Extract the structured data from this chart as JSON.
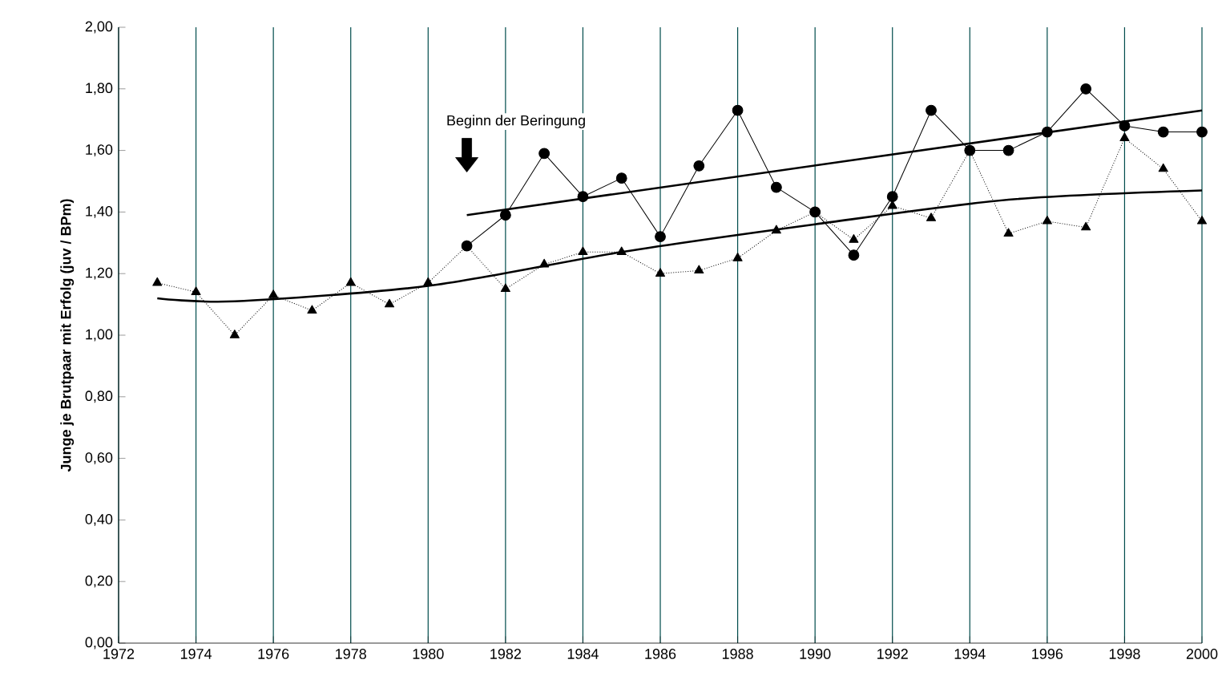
{
  "chart_data": {
    "type": "line",
    "ylabel": "Junge je Brutpaar mit Erfolg (juv / BPm)",
    "xlim": [
      1972,
      2000
    ],
    "xticks": [
      1972,
      1974,
      1976,
      1978,
      1980,
      1982,
      1984,
      1986,
      1988,
      1990,
      1992,
      1994,
      1996,
      1998,
      2000
    ],
    "ylim": [
      0,
      2
    ],
    "yticks": [
      {
        "value": 0,
        "label": "0,00"
      },
      {
        "value": 0.2,
        "label": "0,20"
      },
      {
        "value": 0.4,
        "label": "0,40"
      },
      {
        "value": 0.6,
        "label": "0,60"
      },
      {
        "value": 0.8,
        "label": "0,80"
      },
      {
        "value": 1.0,
        "label": "1,00"
      },
      {
        "value": 1.2,
        "label": "1,20"
      },
      {
        "value": 1.4,
        "label": "1,40"
      },
      {
        "value": 1.6,
        "label": "1,60"
      },
      {
        "value": 1.8,
        "label": "1,80"
      },
      {
        "value": 2.0,
        "label": "2,00"
      }
    ],
    "grid": "x",
    "annotations": [
      "Beginn der Beringung"
    ],
    "series": [
      {
        "color": "#000000",
        "marker": "circle",
        "line_style": "solid",
        "x": [
          1981,
          1982,
          1983,
          1984,
          1985,
          1986,
          1987,
          1988,
          1989,
          1990,
          1991,
          1992,
          1993,
          1994,
          1995,
          1996,
          1997,
          1998,
          1999,
          2000
        ],
        "values": [
          1.29,
          1.39,
          1.59,
          1.45,
          1.51,
          1.32,
          1.55,
          1.73,
          1.48,
          1.4,
          1.26,
          1.45,
          1.73,
          1.6,
          1.6,
          1.66,
          1.8,
          1.68,
          1.66,
          1.66
        ]
      },
      {
        "color": "#000000",
        "marker": "triangle",
        "line_style": "dotted",
        "x": [
          1973,
          1974,
          1975,
          1976,
          1977,
          1978,
          1979,
          1980,
          1981,
          1982,
          1983,
          1984,
          1985,
          1986,
          1987,
          1988,
          1989,
          1990,
          1991,
          1992,
          1993,
          1994,
          1995,
          1996,
          1997,
          1998,
          1999,
          2000
        ],
        "values": [
          1.17,
          1.14,
          1.0,
          1.13,
          1.08,
          1.17,
          1.1,
          1.17,
          1.29,
          1.15,
          1.23,
          1.27,
          1.27,
          1.2,
          1.21,
          1.25,
          1.34,
          1.4,
          1.31,
          1.42,
          1.38,
          1.6,
          1.33,
          1.37,
          1.35,
          1.64,
          1.54,
          1.37
        ]
      },
      {
        "color": "#000000",
        "marker": "none",
        "line_style": "solid",
        "x": [
          1981,
          2000
        ],
        "values": [
          1.39,
          1.73
        ]
      },
      {
        "color": "#000000",
        "marker": "none",
        "line_style": "solid",
        "x": [
          1973,
          1975,
          1980,
          1985,
          1990,
          1995,
          2000
        ],
        "values": [
          1.12,
          1.11,
          1.16,
          1.27,
          1.36,
          1.44,
          1.47
        ]
      }
    ]
  }
}
